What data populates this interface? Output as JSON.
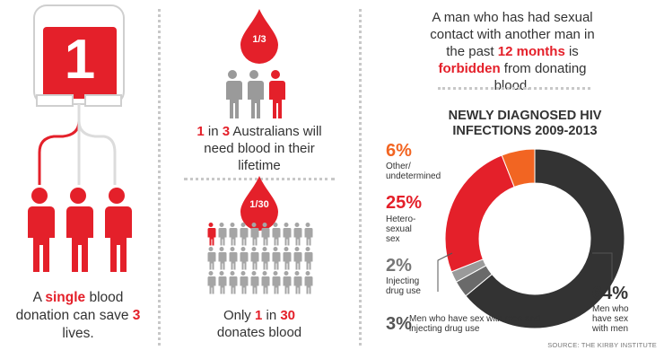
{
  "panel1": {
    "bag_number": "1",
    "caption_pre": "A ",
    "caption_single": "single",
    "caption_mid": " blood donation can save ",
    "caption_three": "3",
    "caption_post": " lives."
  },
  "panel2": {
    "drop1_label": "1/3",
    "stat1_one": "1",
    "stat1_in": " in ",
    "stat1_three": "3",
    "stat1_rest": " Australians will need blood in their lifetime",
    "drop2_label": "1/30",
    "stat2_pre": "Only ",
    "stat2_one": "1",
    "stat2_in": " in ",
    "stat2_thirty": "30",
    "stat2_rest": " donates blood"
  },
  "panel3": {
    "notice_pre": "A man who has had sexual contact with another man in the past ",
    "notice_months": "12 months",
    "notice_mid": " is ",
    "notice_forbidden": "forbidden",
    "notice_post": " from donating blood.",
    "source": "SOURCE: THE KIRBY INSTITUTE"
  },
  "chart_data": {
    "type": "pie",
    "title": "NEWLY DIAGNOSED HIV INFECTIONS 2009-2013",
    "categories": [
      "Other/ undetermined",
      "Hetero- sexual sex",
      "Injecting drug use",
      "Men who have sex with men and injecting drug use",
      "Men who have sex with men"
    ],
    "values": [
      6,
      25,
      2,
      3,
      64
    ],
    "value_labels": [
      "6%",
      "25%",
      "2%",
      "3%",
      "64%"
    ],
    "colors": [
      "#f26522",
      "#e4202a",
      "#9a9a9a",
      "#6a6a6a",
      "#333333"
    ],
    "donut": true
  },
  "colors": {
    "accent": "#e4202a",
    "gray": "#9a9a9a",
    "dark": "#333333"
  },
  "icons": [
    "blood-bag-icon",
    "blood-drop-icon",
    "person-icon"
  ]
}
